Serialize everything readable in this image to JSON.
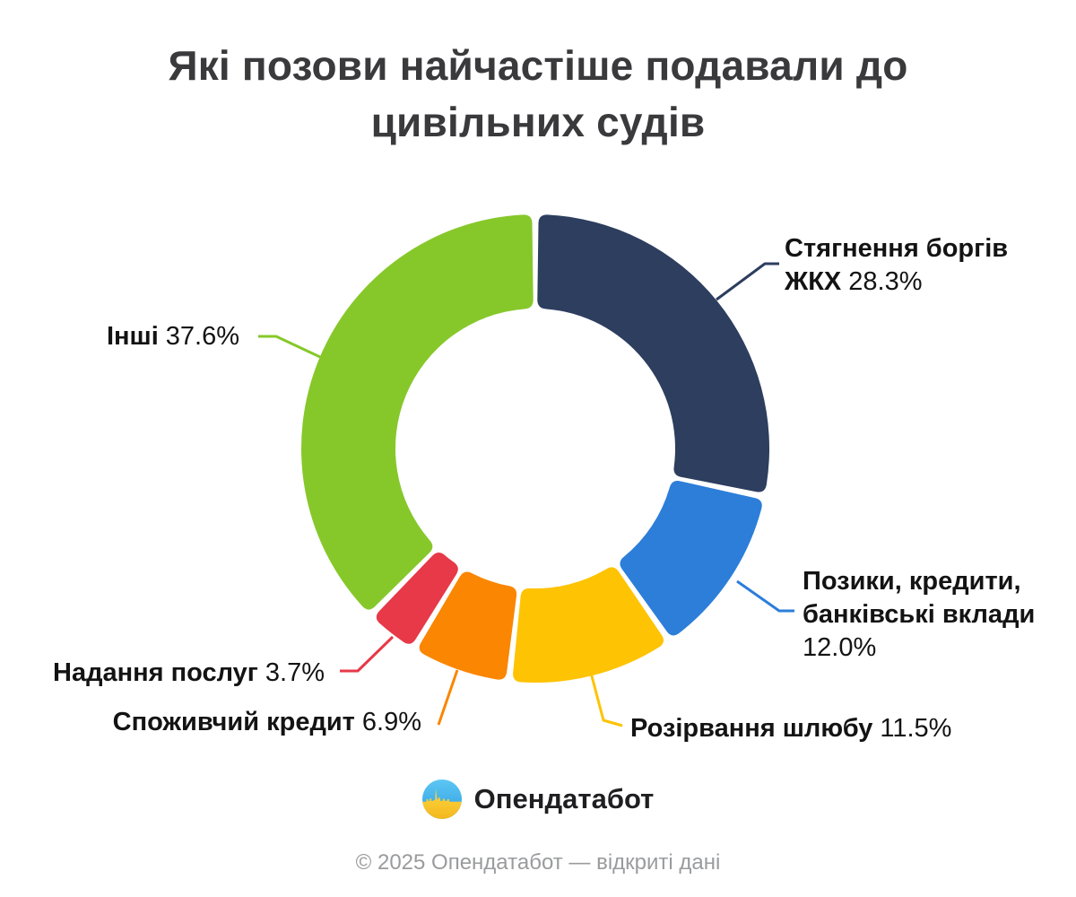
{
  "chart_data": {
    "type": "pie",
    "subtype": "donut",
    "title": "Які позови найчастіше подавали до цивільних судів",
    "title_lines": [
      "Які позови найчастіше подавали до",
      "цивільних судів"
    ],
    "unit": "%",
    "start_angle_deg": 0,
    "direction": "clockwise",
    "donut_hole": true,
    "legend_position": "callout-labels",
    "segments": [
      {
        "label": "Стягнення боргів ЖКХ",
        "label_lines": [
          "Стягнення боргів",
          "ЖКХ"
        ],
        "value": 28.3,
        "display": "28.3%",
        "color": "#2d3e5f",
        "percent_own_line": false
      },
      {
        "label": "Позики, кредити, банківські вклади",
        "label_lines": [
          "Позики, кредити,",
          "банківські вклади"
        ],
        "value": 12.0,
        "display": "12.0%",
        "color": "#2c7ed9",
        "percent_own_line": true
      },
      {
        "label": "Розірвання шлюбу",
        "label_lines": [
          "Розірвання шлюбу"
        ],
        "value": 11.5,
        "display": "11.5%",
        "color": "#fec303",
        "percent_own_line": false
      },
      {
        "label": "Споживчий кредит",
        "label_lines": [
          "Споживчий кредит"
        ],
        "value": 6.9,
        "display": "6.9%",
        "color": "#fa8602",
        "percent_own_line": false
      },
      {
        "label": "Надання послуг",
        "label_lines": [
          "Надання послуг"
        ],
        "value": 3.7,
        "display": "3.7%",
        "color": "#e73948",
        "percent_own_line": false
      },
      {
        "label": "Інші",
        "label_lines": [
          "Інші"
        ],
        "value": 37.6,
        "display": "37.6%",
        "color": "#86c82a",
        "percent_own_line": false
      }
    ]
  },
  "branding": {
    "logo_text": "Опендатабот",
    "logo_icon": "opendatabot-circle-skyline"
  },
  "footer": {
    "copyright": "© 2025 Опендатабот — відкриті дані"
  }
}
